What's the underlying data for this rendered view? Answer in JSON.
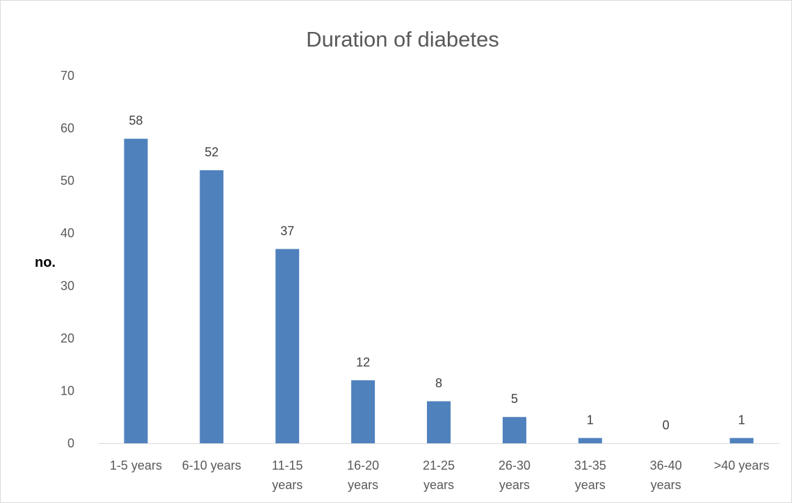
{
  "chart_data": {
    "type": "bar",
    "title": "Duration of diabetes",
    "xlabel": "",
    "ylabel": "no.",
    "categories": [
      [
        "1-5 years"
      ],
      [
        "6-10 years"
      ],
      [
        "11-15",
        "years"
      ],
      [
        "16-20",
        "years"
      ],
      [
        "21-25",
        "years"
      ],
      [
        "26-30",
        "years"
      ],
      [
        "31-35",
        "years"
      ],
      [
        "36-40",
        "years"
      ],
      [
        ">40 years"
      ]
    ],
    "values": [
      58,
      52,
      37,
      12,
      8,
      5,
      1,
      0,
      1
    ],
    "ylim": [
      0,
      70
    ],
    "yticks": [
      0,
      10,
      20,
      30,
      40,
      50,
      60,
      70
    ],
    "grid": false,
    "legend": "none",
    "data_labels": true,
    "colors": {
      "bar": "#4f81bd",
      "axis": "#d9d9d9",
      "text": "#595959"
    }
  }
}
